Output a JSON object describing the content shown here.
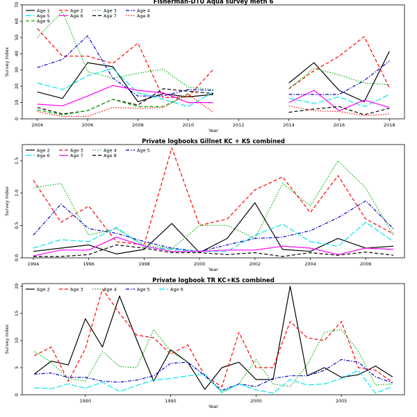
{
  "chart_data": [
    {
      "type": "line",
      "title": "Fisherman-DTU Aqua survey meth 6",
      "xlabel": "Year",
      "ylabel": "Survey index",
      "xlim": [
        2003.4,
        2018.6
      ],
      "ylim": [
        0,
        70
      ],
      "xticks": [
        2004,
        2006,
        2008,
        2010,
        2012,
        2014,
        2016,
        2018
      ],
      "yticks": [
        0,
        10,
        20,
        30,
        40,
        50,
        60,
        70
      ],
      "legend": {
        "placement": "top-left",
        "columns": 4
      },
      "x": [
        2004,
        2005,
        2006,
        2007,
        2008,
        2009,
        2010,
        2011,
        2012,
        2013,
        2014,
        2015,
        2016,
        2017,
        2018
      ],
      "series": [
        {
          "name": "Age 1",
          "color": "#000000",
          "dash": "solid",
          "values": [
            16.5,
            12.5,
            34.5,
            32,
            10.5,
            15.5,
            13.5,
            15,
            null,
            null,
            22,
            34.5,
            17.5,
            10.5,
            41.5
          ]
        },
        {
          "name": "Age 2",
          "color": "#ff0000",
          "dash": "dashed",
          "values": [
            55.5,
            38.5,
            38.5,
            34,
            46.5,
            13,
            13.5,
            30.5,
            null,
            null,
            18.5,
            29.5,
            38.5,
            50.5,
            19
          ]
        },
        {
          "name": "Age 3",
          "color": "#00b000",
          "dash": "dotted",
          "values": [
            50,
            66,
            29,
            25,
            28,
            30.5,
            19.5,
            18,
            null,
            null,
            18.5,
            31,
            27,
            22,
            21
          ]
        },
        {
          "name": "Age 4",
          "color": "#0000cc",
          "dash": "dashdot",
          "values": [
            31.5,
            36.5,
            51,
            25,
            14,
            14,
            18,
            17.5,
            null,
            null,
            15,
            15,
            15,
            23.5,
            35.5
          ]
        },
        {
          "name": "Age 5",
          "color": "#00e5ee",
          "dash": "longdash",
          "values": [
            22,
            18,
            26.5,
            31,
            16,
            12,
            7.5,
            16.5,
            null,
            null,
            12.5,
            9.5,
            13.5,
            7.5,
            15
          ]
        },
        {
          "name": "Age 6",
          "color": "#ff00ff",
          "dash": "solid",
          "values": [
            9,
            8,
            14,
            20.5,
            17.5,
            16,
            10,
            10,
            null,
            null,
            10,
            17.5,
            5,
            11.5,
            7
          ]
        },
        {
          "name": "Age 7",
          "color": "#000000",
          "dash": "dashed",
          "values": [
            7,
            3,
            5,
            12,
            8.5,
            18.5,
            17,
            15.5,
            null,
            null,
            4,
            6,
            7.5,
            2.5,
            6.5
          ]
        },
        {
          "name": "Age 8",
          "color": "#ff0000",
          "dash": "dotted",
          "values": [
            4.5,
            1.5,
            1.5,
            7,
            6.5,
            7,
            15,
            4,
            null,
            null,
            8,
            5,
            4.5,
            2,
            3
          ]
        },
        {
          "name": "Age 9",
          "color": "#00b000",
          "dash": "dashed",
          "values": [
            5.5,
            2.5,
            5,
            12,
            7.5,
            7.5,
            15.5,
            null,
            null,
            null,
            null,
            null,
            null,
            null,
            null
          ]
        }
      ]
    },
    {
      "type": "line",
      "title": "Private logbooks Gillnet KC + KS combined",
      "xlabel": "Year",
      "ylabel": "Survey index",
      "xlim": [
        1993.6,
        2007.4
      ],
      "ylim": [
        0,
        1.75
      ],
      "xticks": [
        1994,
        1996,
        1998,
        2000,
        2002,
        2004,
        2006
      ],
      "yticks": [
        0,
        0.5,
        1,
        1.5
      ],
      "ytick_labels": [
        "0.0",
        "0.5",
        "1.0",
        "1.5"
      ],
      "legend": {
        "placement": "top-left",
        "columns": 4
      },
      "x": [
        1994,
        1995,
        1996,
        1997,
        1998,
        1999,
        2000,
        2001,
        2002,
        2003,
        2004,
        2005,
        2006,
        2007
      ],
      "series": [
        {
          "name": "Age 2",
          "color": "#000000",
          "dash": "solid",
          "values": [
            0.1,
            0.15,
            0.2,
            0.06,
            0.13,
            0.53,
            0.08,
            0.3,
            0.85,
            0.13,
            0.1,
            0.3,
            0.15,
            0.18
          ]
        },
        {
          "name": "Age 3",
          "color": "#ff0000",
          "dash": "dashed",
          "values": [
            1.2,
            0.55,
            0.8,
            0.25,
            0.2,
            1.7,
            0.5,
            0.6,
            1.05,
            1.25,
            0.7,
            1.27,
            0.6,
            0.37
          ]
        },
        {
          "name": "Age 4",
          "color": "#00b000",
          "dash": "dotted",
          "values": [
            1.08,
            1.15,
            0.35,
            0.45,
            0.2,
            0.14,
            0.5,
            0.5,
            0.3,
            1.15,
            0.8,
            1.5,
            1.08,
            0.35
          ]
        },
        {
          "name": "Age 5",
          "color": "#0000cc",
          "dash": "dashdot",
          "values": [
            0.35,
            0.83,
            0.45,
            0.38,
            0.25,
            0.15,
            0.1,
            0.2,
            0.3,
            0.32,
            0.42,
            0.62,
            0.88,
            0.45
          ]
        },
        {
          "name": "Age 6",
          "color": "#00e5ee",
          "dash": "longdash",
          "values": [
            0.15,
            0.28,
            0.25,
            0.47,
            0.17,
            0.13,
            0.1,
            0.1,
            0.35,
            0.52,
            0.25,
            0.18,
            0.55,
            0.25
          ]
        },
        {
          "name": "Age 7",
          "color": "#ff00ff",
          "dash": "solid",
          "values": [
            0.03,
            0.12,
            0.12,
            0.32,
            0.18,
            0.1,
            0.1,
            0.12,
            0.12,
            0.18,
            0.15,
            0.05,
            0.15,
            0.13
          ]
        },
        {
          "name": "Age 8",
          "color": "#000000",
          "dash": "dashed",
          "values": [
            0.02,
            0.02,
            0.05,
            0.2,
            0.15,
            0.08,
            0.08,
            0.05,
            0.08,
            0.02,
            0.08,
            0.04,
            0.09,
            0.04
          ]
        }
      ]
    },
    {
      "type": "line",
      "title": "Private logbook TR KC+KS combined",
      "xlabel": "Year",
      "ylabel": "Survey index",
      "xlim": [
        1986.3,
        2008.7
      ],
      "ylim": [
        0,
        20.5
      ],
      "xticks": [
        1990,
        1995,
        2000,
        2005
      ],
      "yticks": [
        0,
        5,
        10,
        15,
        20
      ],
      "legend": {
        "placement": "top-left",
        "columns": 5
      },
      "x": [
        1987,
        1988,
        1989,
        1990,
        1991,
        1992,
        1993,
        1994,
        1995,
        1996,
        1997,
        1998,
        1999,
        2000,
        2001,
        2002,
        2003,
        2004,
        2005,
        2006,
        2007,
        2008
      ],
      "series": [
        {
          "name": "Age 2",
          "color": "#000000",
          "dash": "solid",
          "values": [
            3.8,
            6.2,
            5.5,
            14,
            8.8,
            18.2,
            10.2,
            2.5,
            8.3,
            6,
            1,
            5,
            6,
            2.8,
            2.8,
            20,
            3.5,
            5,
            3.2,
            3.7,
            5.3,
            3.3
          ]
        },
        {
          "name": "Age 3",
          "color": "#ff0000",
          "dash": "dashed",
          "values": [
            7.2,
            8.8,
            2.5,
            8.5,
            19.5,
            15,
            11,
            10.5,
            7.5,
            9.2,
            3.5,
            1.5,
            11.5,
            5,
            5,
            13.5,
            10.5,
            10,
            13.5,
            5,
            4.5,
            2.3
          ]
        },
        {
          "name": "Age 4",
          "color": "#00b000",
          "dash": "dotted",
          "values": [
            8,
            6,
            3,
            2.5,
            8,
            5.2,
            5,
            12,
            8,
            6,
            3.5,
            0.5,
            2,
            6.5,
            2,
            1.5,
            5.5,
            11.5,
            12,
            8,
            1.8,
            2
          ]
        },
        {
          "name": "Age 5",
          "color": "#0000cc",
          "dash": "dashdot",
          "values": [
            3.8,
            4,
            3.2,
            3.2,
            2.5,
            2.3,
            2.7,
            3.5,
            5.8,
            6,
            3.5,
            0.8,
            2,
            1.5,
            3,
            3.5,
            3.5,
            4.5,
            6.5,
            6,
            3.3,
            2.2
          ]
        },
        {
          "name": "Age 6",
          "color": "#00e5ee",
          "dash": "longdash",
          "values": [
            1.3,
            1.1,
            2,
            1.2,
            2.3,
            0.6,
            1.7,
            2.7,
            3,
            3.5,
            3.8,
            0.4,
            2,
            0.9,
            0.3,
            2.8,
            1.8,
            2,
            3,
            4.5,
            0.3,
            1.5
          ]
        }
      ]
    }
  ]
}
